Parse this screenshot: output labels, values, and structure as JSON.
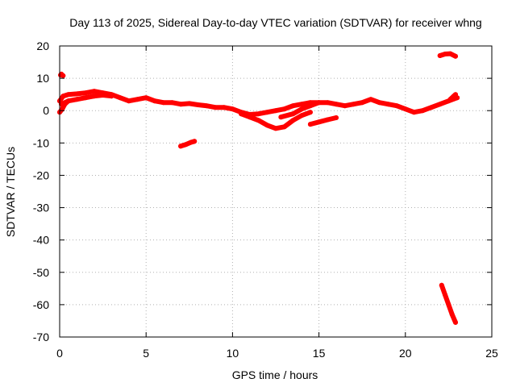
{
  "chart_data": {
    "type": "scatter",
    "title": "Day 113 of 2025, Sidereal Day-to-day VTEC variation (SDTVAR) for receiver whng",
    "xlabel": "GPS time / hours",
    "ylabel": "SDTVAR / TECUs",
    "xlim": [
      0,
      25
    ],
    "ylim": [
      -70,
      20
    ],
    "xticks": [
      0,
      5,
      10,
      15,
      20,
      25
    ],
    "yticks": [
      -70,
      -60,
      -50,
      -40,
      -30,
      -20,
      -10,
      0,
      10,
      20
    ],
    "grid": true,
    "legend": "none",
    "series_color": "#ff0000",
    "series": [
      {
        "name": "main-band-a",
        "x": [
          0.0,
          0.2,
          0.5,
          1.0,
          1.5,
          2.0,
          2.5,
          3.0,
          3.5,
          4.0,
          4.5,
          5.0,
          5.5,
          6.0,
          6.5,
          7.0,
          7.5,
          8.0,
          8.5,
          9.0,
          9.5,
          10.0,
          10.5,
          11.0,
          11.5,
          12.0,
          12.5,
          13.0,
          13.5,
          14.0,
          14.5,
          15.0,
          15.5,
          16.0,
          16.5,
          17.0,
          17.5,
          18.0,
          18.5,
          19.0,
          19.5,
          20.0,
          20.5,
          21.0,
          21.5,
          22.0,
          22.5,
          23.0
        ],
        "y": [
          3,
          4.5,
          5,
          5.2,
          5.5,
          6,
          5.5,
          5,
          4,
          3,
          3.5,
          4,
          3,
          2.5,
          2.5,
          2,
          2.2,
          1.8,
          1.5,
          1,
          1,
          0.5,
          -0.5,
          -1.2,
          -1,
          -0.5,
          0,
          0.5,
          1.5,
          2,
          2.5,
          2.5,
          2.5,
          2,
          1.5,
          2,
          2.5,
          3.5,
          2.5,
          2,
          1.5,
          0.5,
          -0.5,
          0,
          1,
          2,
          3,
          4
        ]
      },
      {
        "name": "main-band-b",
        "x": [
          0.1,
          0.5,
          1.0,
          1.5,
          2.0,
          2.5,
          3.0
        ],
        "y": [
          2,
          3,
          3.5,
          4,
          4.5,
          4.8,
          4.5
        ]
      },
      {
        "name": "low-dip",
        "x": [
          10.5,
          11.0,
          11.5,
          12.0,
          12.5,
          13.0,
          13.5,
          14.0,
          14.5
        ],
        "y": [
          -1,
          -2,
          -3,
          -4.5,
          -5.5,
          -5,
          -3,
          -1.5,
          -0.5
        ]
      },
      {
        "name": "lower-arc",
        "x": [
          12.8,
          13.5,
          14.0,
          14.5,
          15.0
        ],
        "y": [
          -2,
          -1,
          0.5,
          1.5,
          2.5
        ]
      },
      {
        "name": "start-dip",
        "x": [
          0.0,
          0.15,
          0.3,
          0.5
        ],
        "y": [
          -0.5,
          0.5,
          2,
          3
        ]
      },
      {
        "name": "segment-7-8",
        "x": [
          7.0,
          7.3,
          7.6,
          7.8
        ],
        "y": [
          -11,
          -10.5,
          -9.8,
          -9.5
        ]
      },
      {
        "name": "segment-14-16",
        "x": [
          14.5,
          15.0,
          15.5,
          16.0
        ],
        "y": [
          -4.2,
          -3.5,
          -2.8,
          -2.2
        ]
      },
      {
        "name": "early-point",
        "x": [
          0.05,
          0.1,
          0.15,
          0.2
        ],
        "y": [
          11,
          11.3,
          11,
          10.8
        ]
      },
      {
        "name": "top-right",
        "x": [
          22.0,
          22.3,
          22.6,
          22.9
        ],
        "y": [
          17,
          17.5,
          17.6,
          16.8
        ]
      },
      {
        "name": "bottom-right",
        "x": [
          22.1,
          22.3,
          22.5,
          22.7,
          22.9
        ],
        "y": [
          -54,
          -57,
          -60,
          -63,
          -65.5
        ]
      },
      {
        "name": "right-blip",
        "x": [
          22.6,
          22.8,
          22.9
        ],
        "y": [
          3.5,
          4.5,
          5
        ]
      }
    ]
  }
}
